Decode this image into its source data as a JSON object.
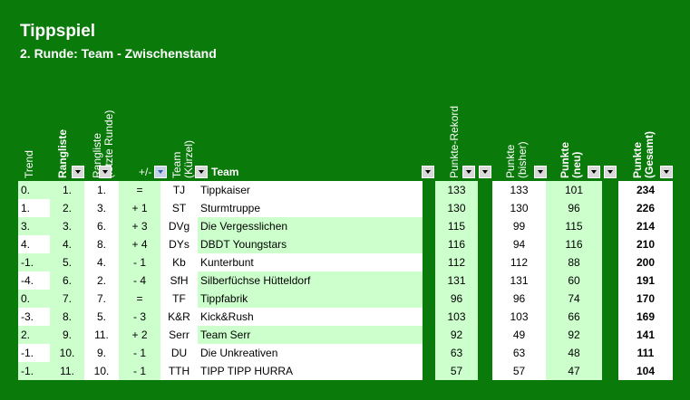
{
  "header": {
    "title": "Tippspiel",
    "subtitle": "2. Runde: Team - Zwischenstand"
  },
  "columns": {
    "trend": "Trend",
    "rangliste": "Rangliste",
    "rangliste_prev_1": "Rangliste",
    "rangliste_prev_2": "(letzte Runde)",
    "plusminus": "+/-",
    "team_short_1": "Team",
    "team_short_2": "(Kürzel)",
    "team": "Team",
    "punkte_rekord": "Punkte-Rekord",
    "punkte_bisher_1": "Punkte",
    "punkte_bisher_2": "(bisher)",
    "punkte_neu_1": "Punkte",
    "punkte_neu_2": "(neu)",
    "punkte_gesamt_1": "Punkte",
    "punkte_gesamt_2": "(Gesamt)"
  },
  "rows": [
    {
      "trend": "0.",
      "rank": "1.",
      "prev": "1.",
      "pm": "=",
      "short": "TJ",
      "team": "Tippkaiser",
      "rekord": "133",
      "bisher": "133",
      "neu": "101",
      "gesamt": "234"
    },
    {
      "trend": "1.",
      "rank": "2.",
      "prev": "3.",
      "pm": "+ 1",
      "short": "ST",
      "team": "Sturmtruppe",
      "rekord": "130",
      "bisher": "130",
      "neu": "96",
      "gesamt": "226"
    },
    {
      "trend": "3.",
      "rank": "3.",
      "prev": "6.",
      "pm": "+ 3",
      "short": "DVg",
      "team": "Die Vergesslichen",
      "rekord": "115",
      "bisher": "99",
      "neu": "115",
      "gesamt": "214"
    },
    {
      "trend": "4.",
      "rank": "4.",
      "prev": "8.",
      "pm": "+ 4",
      "short": "DYs",
      "team": "DBDT Youngstars",
      "rekord": "116",
      "bisher": "94",
      "neu": "116",
      "gesamt": "210"
    },
    {
      "trend": "-1.",
      "rank": "5.",
      "prev": "4.",
      "pm": "- 1",
      "short": "Kb",
      "team": "Kunterbunt",
      "rekord": "112",
      "bisher": "112",
      "neu": "88",
      "gesamt": "200"
    },
    {
      "trend": "-4.",
      "rank": "6.",
      "prev": "2.",
      "pm": "- 4",
      "short": "SfH",
      "team": "Silberfüchse Hütteldorf",
      "rekord": "131",
      "bisher": "131",
      "neu": "60",
      "gesamt": "191"
    },
    {
      "trend": "0.",
      "rank": "7.",
      "prev": "7.",
      "pm": "=",
      "short": "TF",
      "team": "Tippfabrik",
      "rekord": "96",
      "bisher": "96",
      "neu": "74",
      "gesamt": "170"
    },
    {
      "trend": "-3.",
      "rank": "8.",
      "prev": "5.",
      "pm": "- 3",
      "short": "K&R",
      "team": "Kick&Rush",
      "rekord": "103",
      "bisher": "103",
      "neu": "66",
      "gesamt": "169"
    },
    {
      "trend": "2.",
      "rank": "9.",
      "prev": "11.",
      "pm": "+ 2",
      "short": "Serr",
      "team": "Team Serr",
      "rekord": "92",
      "bisher": "49",
      "neu": "92",
      "gesamt": "141"
    },
    {
      "trend": "-1.",
      "rank": "10.",
      "prev": "9.",
      "pm": "- 1",
      "short": "DU",
      "team": "Die Unkreativen",
      "rekord": "63",
      "bisher": "63",
      "neu": "48",
      "gesamt": "111"
    },
    {
      "trend": "-1.",
      "rank": "11.",
      "prev": "10.",
      "pm": "- 1",
      "short": "TTH",
      "team": "TIPP TIPP HURRA",
      "rekord": "57",
      "bisher": "57",
      "neu": "47",
      "gesamt": "104"
    }
  ],
  "colors": {
    "background": "#0a7a0a",
    "light_green": "#ccffcc",
    "white": "#ffffff"
  }
}
